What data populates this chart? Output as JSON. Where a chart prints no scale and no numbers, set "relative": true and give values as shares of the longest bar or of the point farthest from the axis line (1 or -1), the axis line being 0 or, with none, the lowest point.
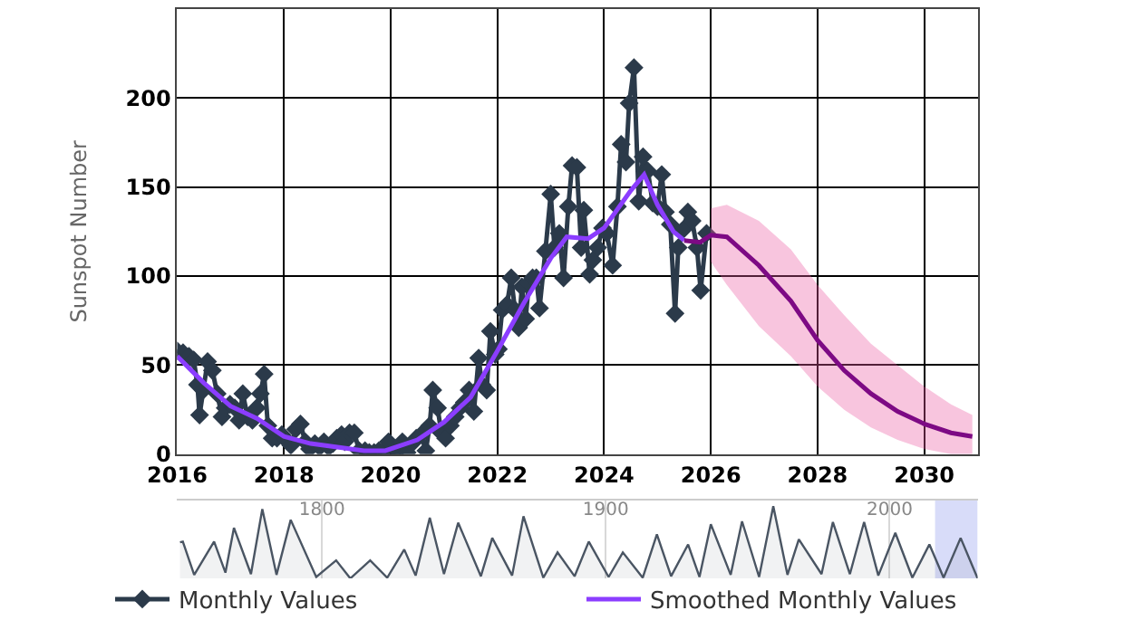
{
  "chart_data": [
    {
      "type": "line",
      "ylabel": "Sunspot Number",
      "xlim": [
        2016,
        2031
      ],
      "xticks": [
        2016,
        2018,
        2020,
        2022,
        2024,
        2026,
        2028,
        2030
      ],
      "ylim": [
        0,
        250
      ],
      "yticks": [
        0,
        50,
        100,
        150,
        200
      ],
      "grid": true,
      "legend": "bottom",
      "series": [
        {
          "name": "Monthly Values",
          "color": "#2b3a4a",
          "marker": "diamond",
          "x": [
            2016.0,
            2016.11,
            2016.22,
            2016.31,
            2016.38,
            2016.42,
            2016.49,
            2016.57,
            2016.66,
            2016.75,
            2016.84,
            2016.9,
            2016.99,
            2017.08,
            2017.16,
            2017.23,
            2017.32,
            2017.41,
            2017.49,
            2017.56,
            2017.63,
            2017.7,
            2017.78,
            2017.87,
            2017.96,
            2018.04,
            2018.13,
            2018.22,
            2018.31,
            2018.4,
            2018.48,
            2018.58,
            2018.67,
            2018.75,
            2018.84,
            2018.92,
            2018.99,
            2019.08,
            2019.14,
            2019.23,
            2019.32,
            2019.41,
            2019.52,
            2019.6,
            2019.69,
            2019.78,
            2019.87,
            2019.96,
            2020.04,
            2020.13,
            2020.22,
            2020.31,
            2020.4,
            2020.48,
            2020.57,
            2020.66,
            2020.73,
            2020.79,
            2020.88,
            2020.95,
            2021.03,
            2021.12,
            2021.21,
            2021.3,
            2021.38,
            2021.47,
            2021.56,
            2021.65,
            2021.71,
            2021.8,
            2021.87,
            2021.96,
            2022.02,
            2022.09,
            2022.18,
            2022.26,
            2022.33,
            2022.4,
            2022.46,
            2022.53,
            2022.59,
            2022.66,
            2022.73,
            2022.79,
            2022.9,
            2023.0,
            2023.07,
            2023.16,
            2023.24,
            2023.33,
            2023.4,
            2023.49,
            2023.57,
            2023.62,
            2023.73,
            2023.79,
            2023.88,
            2023.97,
            2024.05,
            2024.16,
            2024.25,
            2024.32,
            2024.41,
            2024.47,
            2024.56,
            2024.65,
            2024.73,
            2024.82,
            2024.91,
            2025.0,
            2025.08,
            2025.15,
            2025.24,
            2025.33,
            2025.39,
            2025.48,
            2025.57,
            2025.65,
            2025.74,
            2025.81,
            2025.92
          ],
          "values": [
            58,
            57,
            55,
            53,
            39,
            22,
            36,
            52,
            47,
            34,
            21,
            26,
            28,
            26,
            19,
            34,
            21,
            19,
            26,
            34,
            45,
            16,
            9,
            9,
            11,
            8,
            5,
            14,
            17,
            7,
            3,
            6,
            4,
            7,
            4,
            6,
            9,
            11,
            7,
            12,
            12,
            2,
            2,
            1,
            1,
            2,
            2,
            7,
            1,
            2,
            7,
            1,
            6,
            9,
            11,
            2,
            16,
            36,
            26,
            12,
            9,
            16,
            21,
            26,
            29,
            36,
            24,
            54,
            39,
            36,
            69,
            56,
            59,
            81,
            84,
            99,
            81,
            71,
            94,
            76,
            96,
            99,
            99,
            82,
            114,
            146,
            116,
            124,
            99,
            139,
            162,
            161,
            116,
            137,
            101,
            109,
            116,
            127,
            124,
            106,
            139,
            174,
            164,
            197,
            217,
            142,
            167,
            159,
            141,
            139,
            157,
            136,
            129,
            79,
            116,
            126,
            136,
            131,
            116,
            92,
            124
          ]
        },
        {
          "name": "Smoothed Monthly Values",
          "color": "#8b3dff",
          "marker": "none",
          "x": [
            2016.0,
            2016.5,
            2017.0,
            2017.5,
            2018.0,
            2018.5,
            2019.0,
            2019.5,
            2019.9,
            2020.5,
            2021.0,
            2021.5,
            2022.0,
            2022.5,
            2023.0,
            2023.3,
            2023.7,
            2024.0,
            2024.5,
            2024.75,
            2025.0,
            2025.3,
            2025.5
          ],
          "values": [
            55,
            40,
            27,
            20,
            10,
            6,
            4,
            2,
            2,
            8,
            18,
            32,
            58,
            85,
            110,
            122,
            121,
            127,
            148,
            157,
            140,
            125,
            120
          ]
        },
        {
          "color": "#7d0a84",
          "marker": "none",
          "x": [
            2025.5,
            2025.8,
            2026.0,
            2026.3,
            2026.9,
            2027.5,
            2028.0,
            2028.5,
            2029.0,
            2029.5,
            2030.0,
            2030.5,
            2030.9
          ],
          "values": [
            120,
            119,
            123,
            122,
            106,
            86,
            64,
            47,
            34,
            24,
            17,
            12,
            10
          ],
          "lower": [
            null,
            null,
            108,
            95,
            72,
            55,
            38,
            25,
            15,
            8,
            3,
            0,
            0
          ],
          "upper": [
            null,
            null,
            138,
            140,
            131,
            115,
            95,
            78,
            62,
            50,
            38,
            28,
            22
          ]
        }
      ]
    },
    {
      "type": "area",
      "relative": true,
      "xlim": [
        1749,
        2031
      ],
      "xticks": [
        1800,
        1900,
        2000
      ],
      "grid": "x",
      "tick_labels": "x",
      "bands": [
        {
          "axis": "x",
          "from": 2016,
          "to": 2031,
          "color": "#c8cdf7"
        }
      ],
      "series": [
        {
          "color": "#4a5563",
          "x": [
            1750,
            1751,
            1755,
            1762,
            1766,
            1769,
            1775,
            1779,
            1784,
            1789,
            1798,
            1805,
            1810,
            1817,
            1823,
            1829,
            1833,
            1838,
            1843,
            1848,
            1856,
            1860,
            1867,
            1871,
            1878,
            1883,
            1889,
            1894,
            1901,
            1906,
            1913,
            1918,
            1923,
            1929,
            1933,
            1937,
            1944,
            1948,
            1954,
            1959,
            1964,
            1968,
            1976,
            1980,
            1986,
            1991,
            1996,
            2002,
            2008,
            2014,
            2019,
            2025,
            2031
          ],
          "values": [
            0.5,
            0.51,
            0.05,
            0.51,
            0.08,
            0.7,
            0.06,
            0.96,
            0.05,
            0.81,
            0.02,
            0.25,
            0.0,
            0.25,
            0.01,
            0.4,
            0.04,
            0.84,
            0.06,
            0.77,
            0.03,
            0.56,
            0.04,
            0.86,
            0.01,
            0.36,
            0.03,
            0.51,
            0.02,
            0.36,
            0.01,
            0.61,
            0.03,
            0.47,
            0.02,
            0.75,
            0.05,
            0.79,
            0.02,
            1.0,
            0.05,
            0.54,
            0.06,
            0.78,
            0.06,
            0.78,
            0.04,
            0.63,
            0.01,
            0.47,
            0.01,
            0.56,
            0.0
          ]
        }
      ]
    }
  ]
}
